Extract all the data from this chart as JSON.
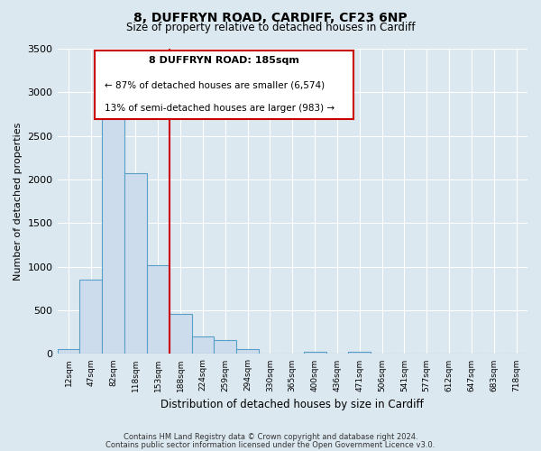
{
  "title": "8, DUFFRYN ROAD, CARDIFF, CF23 6NP",
  "subtitle": "Size of property relative to detached houses in Cardiff",
  "xlabel": "Distribution of detached houses by size in Cardiff",
  "ylabel": "Number of detached properties",
  "bar_labels": [
    "12sqm",
    "47sqm",
    "82sqm",
    "118sqm",
    "153sqm",
    "188sqm",
    "224sqm",
    "259sqm",
    "294sqm",
    "330sqm",
    "365sqm",
    "400sqm",
    "436sqm",
    "471sqm",
    "506sqm",
    "541sqm",
    "577sqm",
    "612sqm",
    "647sqm",
    "683sqm",
    "718sqm"
  ],
  "bar_values": [
    55,
    850,
    2730,
    2075,
    1020,
    460,
    205,
    155,
    60,
    0,
    0,
    30,
    0,
    25,
    0,
    0,
    0,
    0,
    0,
    0,
    0
  ],
  "bar_color": "#ccdcec",
  "bar_edge_color": "#5a9fc8",
  "vline_color": "#cc0000",
  "ylim": [
    0,
    3500
  ],
  "yticks": [
    0,
    500,
    1000,
    1500,
    2000,
    2500,
    3000,
    3500
  ],
  "annotation_title": "8 DUFFRYN ROAD: 185sqm",
  "annotation_line1": "← 87% of detached houses are smaller (6,574)",
  "annotation_line2": "13% of semi-detached houses are larger (983) →",
  "annotation_box_color": "#ffffff",
  "annotation_box_edge": "#cc0000",
  "footer1": "Contains HM Land Registry data © Crown copyright and database right 2024.",
  "footer2": "Contains public sector information licensed under the Open Government Licence v3.0.",
  "bg_color": "#dce8f0",
  "plot_bg_color": "#dce8f0",
  "grid_color": "#ffffff",
  "vline_x_index": 5
}
